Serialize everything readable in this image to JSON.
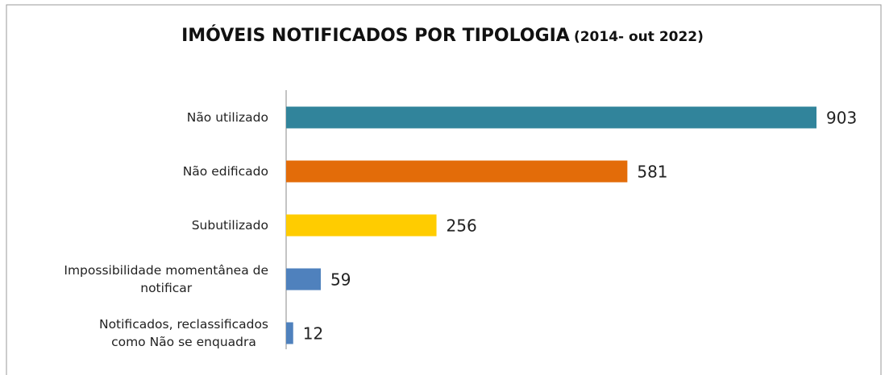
{
  "chart_data": {
    "type": "bar",
    "orientation": "horizontal",
    "title": "IMÓVEIS NOTIFICADOS POR TIPOLOGIA",
    "subtitle": "(2014- out 2022)",
    "categories": [
      "Não utilizado",
      "Não edificado",
      "Subutilizado",
      "Impossibilidade momentânea de\nnotificar",
      "Notificados, reclassificados\ncomo Não se enquadra"
    ],
    "values": [
      903,
      581,
      256,
      59,
      12
    ],
    "colors": [
      "#31849b",
      "#e36c09",
      "#ffcc00",
      "#4f81bd",
      "#4f81bd"
    ]
  }
}
